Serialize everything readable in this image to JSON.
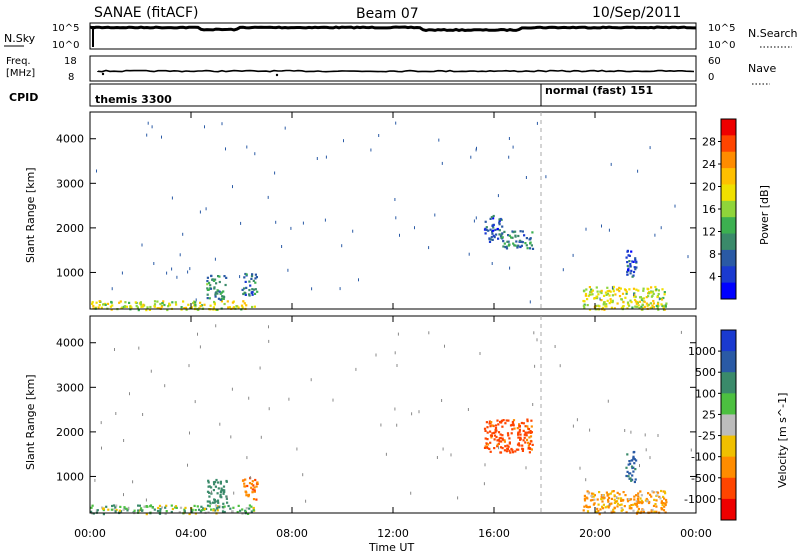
{
  "header": {
    "station": "SANAE (fitACF)",
    "beam": "Beam 07",
    "date": "10/Sep/2011"
  },
  "noise_panel": {
    "left_label": "N.Sky",
    "right_label": "N.Search",
    "tick_top": "10^5",
    "tick_bottom": "10^0",
    "right_tick_top": "10^5",
    "right_tick_bottom": "10^0"
  },
  "freq_panel": {
    "left_label_1": "Freq.",
    "left_label_2": "[MHz]",
    "right_label": "Nave",
    "left_ticks": [
      "18",
      "8"
    ],
    "right_ticks": [
      "60",
      "0"
    ]
  },
  "cpid_panel": {
    "label": "CPID",
    "programs": [
      {
        "name": "themis 3300",
        "start_hour": 0
      },
      {
        "name": "normal (fast) 151",
        "start_hour": 18
      }
    ]
  },
  "power_panel": {
    "ylabel": "Slant Range [km]",
    "yticks": [
      "4000",
      "3000",
      "2000",
      "1000"
    ],
    "colorbar_label": "Power [dB]",
    "colorbar_ticks": [
      "28",
      "24",
      "20",
      "16",
      "12",
      "8",
      "4"
    ],
    "colorbar_colors": [
      "#ee0000",
      "#ff4500",
      "#ff8c00",
      "#ffc000",
      "#f0e000",
      "#8fd53a",
      "#3cb050",
      "#3a8a6a",
      "#2a5aa5",
      "#1a3ad0",
      "#0000ff"
    ]
  },
  "velocity_panel": {
    "ylabel": "Slant Range [km]",
    "yticks": [
      "4000",
      "3000",
      "2000",
      "1000"
    ],
    "colorbar_label": "Velocity [m s^-1]",
    "colorbar_ticks": [
      "1000",
      "500",
      "100",
      "25",
      "-25",
      "-100",
      "-500",
      "-1000"
    ],
    "colorbar_colors": [
      "#1a3ad0",
      "#2a5aa5",
      "#3a8a6a",
      "#4cc040",
      "#bcbcbc",
      "#f0c000",
      "#ff8c00",
      "#ff4500",
      "#ee0000"
    ]
  },
  "x_axis": {
    "label": "Time UT",
    "ticks": [
      "00:00",
      "04:00",
      "08:00",
      "12:00",
      "16:00",
      "20:00",
      "00:00"
    ]
  },
  "chart_data": {
    "type": "heatmap",
    "x_range_hours": [
      0,
      24
    ],
    "y_range_km": [
      180,
      4600
    ],
    "mode_change_hour": 18,
    "power_blobs": [
      {
        "t": [
          0.0,
          6.5
        ],
        "r": [
          180,
          380
        ],
        "value_db": 18
      },
      {
        "t": [
          4.6,
          5.4
        ],
        "r": [
          400,
          950
        ],
        "value_db": 10
      },
      {
        "t": [
          6.0,
          6.6
        ],
        "r": [
          500,
          1000
        ],
        "value_db": 8
      },
      {
        "t": [
          15.6,
          16.3
        ],
        "r": [
          1700,
          2300
        ],
        "value_db": 6
      },
      {
        "t": [
          16.3,
          17.5
        ],
        "r": [
          1550,
          1950
        ],
        "value_db": 9
      },
      {
        "t": [
          19.5,
          22.8
        ],
        "r": [
          180,
          700
        ],
        "value_db": 18
      },
      {
        "t": [
          21.2,
          21.6
        ],
        "r": [
          900,
          1600
        ],
        "value_db": 6
      }
    ],
    "velocity_blobs": [
      {
        "t": [
          0.0,
          6.5
        ],
        "r": [
          180,
          380
        ],
        "value_ms": 60
      },
      {
        "t": [
          4.6,
          5.4
        ],
        "r": [
          400,
          950
        ],
        "value_ms": 300
      },
      {
        "t": [
          6.0,
          6.6
        ],
        "r": [
          500,
          1000
        ],
        "value_ms": -400
      },
      {
        "t": [
          15.6,
          17.5
        ],
        "r": [
          1550,
          2300
        ],
        "value_ms": -600
      },
      {
        "t": [
          19.5,
          22.8
        ],
        "r": [
          180,
          700
        ],
        "value_ms": -150
      },
      {
        "t": [
          21.2,
          21.6
        ],
        "r": [
          900,
          1600
        ],
        "value_ms": 600
      }
    ]
  }
}
